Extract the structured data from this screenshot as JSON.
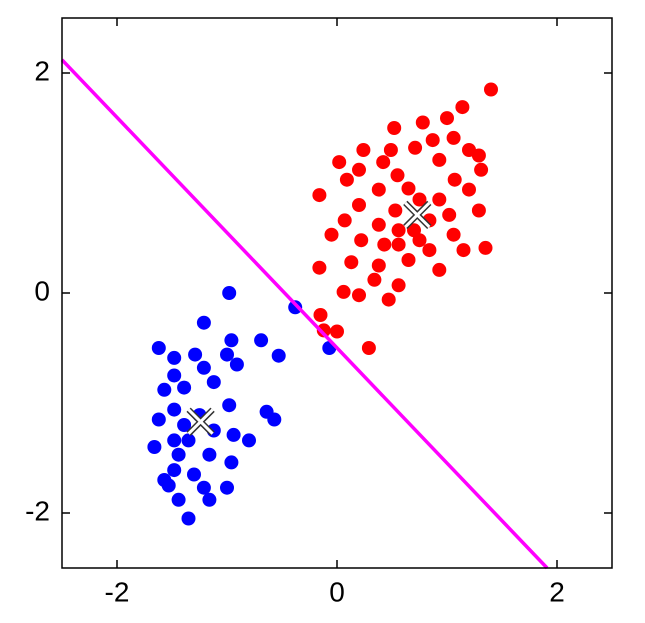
{
  "chart_data": {
    "type": "scatter",
    "xlim": [
      -2.5,
      2.5
    ],
    "ylim": [
      -2.5,
      2.5
    ],
    "xticks": [
      -2,
      0,
      2
    ],
    "yticks": [
      -2,
      0,
      2
    ],
    "grid": false,
    "series": [
      {
        "color": "#ff0000",
        "x": [
          1.4,
          1.14,
          1.0,
          0.78,
          0.52,
          1.06,
          0.87,
          0.71,
          0.49,
          1.2,
          1.29,
          0.24,
          0.02,
          0.42,
          0.93,
          1.31,
          0.2,
          0.55,
          1.07,
          0.09,
          -0.16,
          0.38,
          0.65,
          1.2,
          0.93,
          0.2,
          0.53,
          1.02,
          1.29,
          0.07,
          0.38,
          0.7,
          1.06,
          -0.05,
          0.22,
          0.56,
          0.84,
          1.15,
          1.35,
          -0.16,
          0.13,
          0.38,
          0.65,
          0.93,
          0.34,
          0.56,
          0.06,
          0.2,
          0.47,
          -0.15,
          0.0,
          -0.12,
          0.29,
          0.75,
          0.84,
          0.75,
          0.56,
          0.43
        ],
        "y": [
          1.85,
          1.69,
          1.59,
          1.55,
          1.5,
          1.41,
          1.39,
          1.32,
          1.3,
          1.3,
          1.25,
          1.3,
          1.19,
          1.19,
          1.21,
          1.12,
          1.12,
          1.07,
          1.03,
          1.03,
          0.89,
          0.94,
          0.95,
          0.94,
          0.85,
          0.8,
          0.75,
          0.71,
          0.75,
          0.66,
          0.62,
          0.57,
          0.53,
          0.53,
          0.48,
          0.44,
          0.39,
          0.39,
          0.41,
          0.23,
          0.28,
          0.25,
          0.3,
          0.21,
          0.12,
          0.07,
          0.01,
          -0.02,
          -0.06,
          -0.2,
          -0.35,
          -0.34,
          -0.5,
          0.85,
          0.66,
          0.48,
          0.57,
          0.44
        ]
      },
      {
        "color": "#0000ff",
        "x": [
          -0.98,
          -0.38,
          -1.21,
          -0.69,
          -0.96,
          -1.62,
          -1.29,
          -1.48,
          -1.0,
          -0.53,
          -0.07,
          -0.91,
          -1.21,
          -1.48,
          -1.12,
          -1.57,
          -1.39,
          -0.64,
          -0.57,
          -0.98,
          -1.48,
          -1.62,
          -1.12,
          -1.35,
          -0.94,
          -0.8,
          -1.66,
          -1.44,
          -1.16,
          -0.96,
          -1.48,
          -1.3,
          -1.53,
          -1.21,
          -1.0,
          -1.44,
          -1.16,
          -1.35,
          -1.57,
          -1.39,
          -1.25,
          -1.48
        ],
        "y": [
          0.0,
          -0.13,
          -0.27,
          -0.43,
          -0.43,
          -0.5,
          -0.56,
          -0.59,
          -0.56,
          -0.57,
          -0.5,
          -0.65,
          -0.68,
          -0.75,
          -0.81,
          -0.88,
          -0.86,
          -1.08,
          -1.15,
          -1.02,
          -1.06,
          -1.15,
          -1.25,
          -1.34,
          -1.29,
          -1.34,
          -1.4,
          -1.47,
          -1.47,
          -1.54,
          -1.61,
          -1.65,
          -1.75,
          -1.77,
          -1.77,
          -1.88,
          -1.88,
          -2.05,
          -1.7,
          -1.2,
          -1.11,
          -1.34
        ]
      }
    ],
    "centroids": {
      "x": [
        0.73,
        -1.24
      ],
      "y": [
        0.71,
        -1.17
      ]
    },
    "line": {
      "color": "#ff00ff",
      "x": [
        -2.5,
        1.91
      ],
      "y": [
        2.12,
        -2.5
      ]
    }
  }
}
